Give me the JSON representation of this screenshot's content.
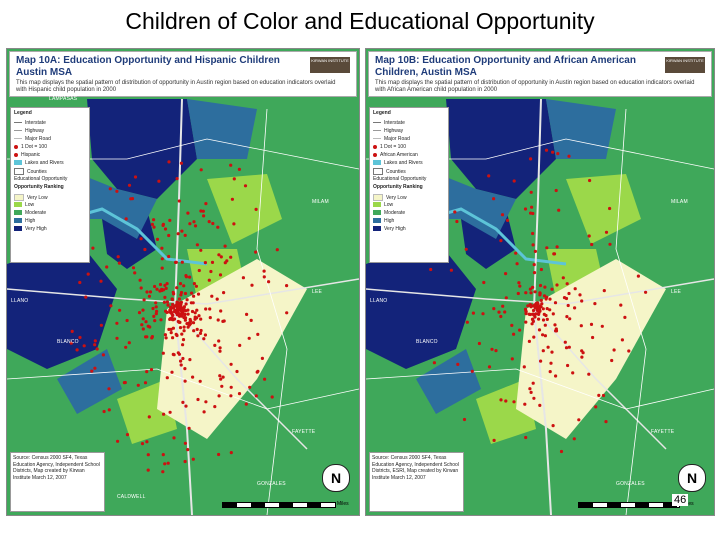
{
  "slide": {
    "title": "Children of Color and Educational Opportunity",
    "page_number": "46"
  },
  "colors": {
    "very_low": "#f5f5c8",
    "low": "#9bd84a",
    "moderate": "#3fa85a",
    "high": "#2d6e9e",
    "very_high": "#13237a",
    "dots": "#cc1111",
    "roads": "#e6e6e6",
    "water": "#5dc4d8"
  },
  "maps": [
    {
      "title": "Map 10A: Education Opportunity and Hispanic Children Austin MSA",
      "subtitle": "This map displays the spatial pattern of distribution of opportunity in Austin region based on education indicators overlaid with Hispanic child population in 2000",
      "legend_title": "Legend",
      "legend_items": [
        "Interstate",
        "Highway",
        "Major Road",
        "1 Dot = 100",
        "Hispanic",
        "Lakes and Rivers",
        "Counties",
        "Educational Opportunity",
        "Opportunity Ranking",
        "Very Low",
        "Low",
        "Moderate",
        "High",
        "Very High"
      ],
      "source_text": "Source: Census 2000 SF4, Texas Education Agency, Independent School Districts, Map created by Kirwan Institute March 12, 2007",
      "scale_label": "Miles",
      "places": [
        "LAMPASAS",
        "MILAM",
        "LEE",
        "LLANO",
        "BLANCO",
        "FAYETTE",
        "GONZALES",
        "CALDWELL"
      ],
      "logo_text": "KIRWAN INSTITUTE"
    },
    {
      "title": "Map 10B: Education Opportunity and African American Children, Austin MSA",
      "subtitle": "This map displays the spatial pattern of distribution of opportunity in Austin region based on education indicators overlaid with African American child population in 2000",
      "legend_title": "Legend",
      "legend_items": [
        "Interstate",
        "Highway",
        "Major Road",
        "1 Dot = 100",
        "African American",
        "Lakes and Rivers",
        "Counties",
        "Educational Opportunity",
        "Opportunity Ranking",
        "Very Low",
        "Low",
        "Moderate",
        "High",
        "Very High"
      ],
      "source_text": "Source: Census 2000 SF4, Texas Education Agency, Independent School Districts, ESRI, Map created by Kirwan Institute March 12, 2007",
      "scale_label": "Miles",
      "places": [
        "MILAM",
        "LEE",
        "LLANO",
        "BLANCO",
        "FAYETTE",
        "GONZALES"
      ],
      "logo_text": "KIRWAN INSTITUTE"
    }
  ]
}
